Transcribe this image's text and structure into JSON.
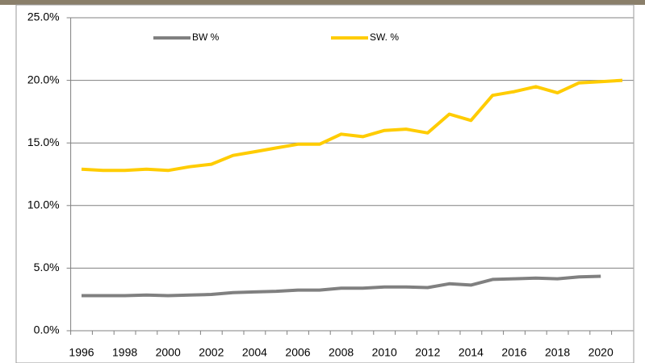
{
  "chart_data": {
    "type": "line",
    "categories": [
      "1996",
      null,
      "1998",
      null,
      "2000",
      null,
      "2002",
      null,
      "2004",
      null,
      "2006",
      null,
      "2008",
      null,
      "2010",
      null,
      "2012",
      null,
      "2014",
      null,
      "2016",
      null,
      "2018",
      null,
      "2020",
      null
    ],
    "series": [
      {
        "name": "BW %",
        "color": "#808080",
        "values": [
          2.8,
          2.8,
          2.8,
          2.85,
          2.8,
          2.85,
          2.9,
          3.05,
          3.1,
          3.15,
          3.25,
          3.25,
          3.4,
          3.4,
          3.5,
          3.5,
          3.45,
          3.75,
          3.65,
          4.1,
          4.15,
          4.2,
          4.15,
          4.3,
          4.35,
          null
        ]
      },
      {
        "name": "SW. %",
        "color": "#FFCC00",
        "values": [
          12.9,
          12.8,
          12.8,
          12.9,
          12.8,
          13.1,
          13.3,
          14.0,
          14.3,
          14.6,
          14.9,
          14.9,
          15.7,
          15.5,
          16.0,
          16.1,
          15.8,
          17.3,
          16.8,
          18.8,
          19.1,
          19.5,
          19.0,
          19.8,
          19.9,
          20.0
        ]
      }
    ],
    "ylim": [
      0,
      25
    ],
    "yticks": [
      {
        "value": 0,
        "label": "0.0%"
      },
      {
        "value": 5,
        "label": "5.0%"
      },
      {
        "value": 10,
        "label": "10.0%"
      },
      {
        "value": 15,
        "label": "15.0%"
      },
      {
        "value": 20,
        "label": "20.0%"
      },
      {
        "value": 25,
        "label": "25.0%"
      }
    ],
    "grid": true,
    "legend": "top"
  }
}
